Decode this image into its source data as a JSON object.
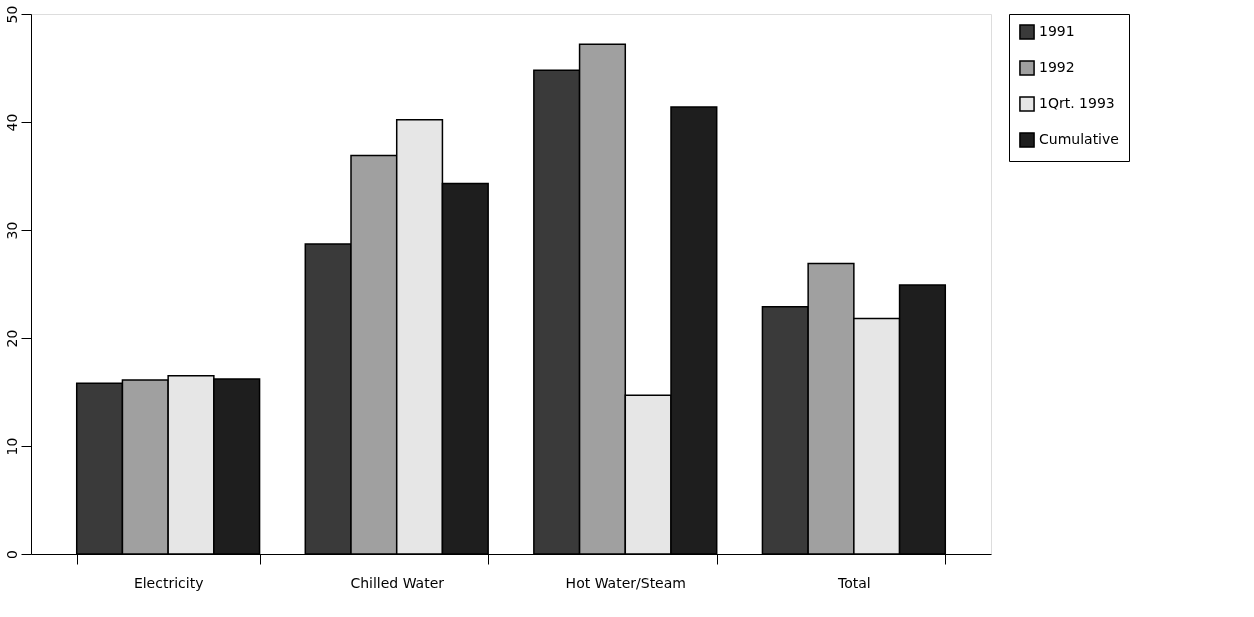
{
  "chart_data": {
    "type": "bar",
    "categories": [
      "Electricity",
      "Chilled Water",
      "Hot Water/Steam",
      "Total"
    ],
    "series": [
      {
        "name": "1991",
        "color": "#3a3a3a",
        "values": [
          15.8,
          28.7,
          44.8,
          22.9
        ]
      },
      {
        "name": "1992",
        "color": "#a0a0a0",
        "values": [
          16.1,
          36.9,
          47.2,
          26.9
        ]
      },
      {
        "name": "1Qrt. 1993",
        "color": "#e6e6e6",
        "values": [
          16.5,
          40.2,
          14.7,
          21.8
        ]
      },
      {
        "name": "Cumulative",
        "color": "#1e1e1e",
        "values": [
          16.2,
          34.3,
          41.4,
          24.9
        ]
      }
    ],
    "ylim": [
      0,
      50
    ],
    "yticks": [
      0,
      10,
      20,
      30,
      40,
      50
    ],
    "grid": false,
    "legend": "right"
  }
}
